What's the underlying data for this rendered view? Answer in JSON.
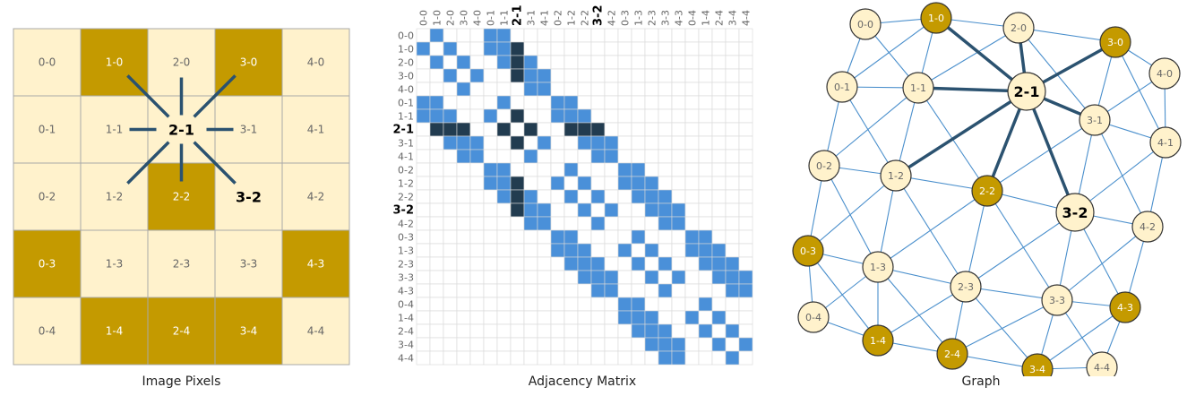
{
  "colors": {
    "light": "#FFF2CC",
    "dark": "#C49A00",
    "grid_border": "#a9a9a9",
    "matrix_blue": "#4A90D9",
    "matrix_dark": "#223C50",
    "matrix_grid": "#d8d8d8",
    "edge_light": "#4A8FCC",
    "edge_dark": "#2B5270",
    "text_dim": "#666666",
    "text_bold": "#000000"
  },
  "captions": {
    "pixels": "Image Pixels",
    "matrix": "Adjacency Matrix",
    "graph": "Graph"
  },
  "highlight": {
    "center": "2-1",
    "secondary": "3-2"
  },
  "pixels": {
    "cells": [
      {
        "label": "0-0",
        "dark": false
      },
      {
        "label": "1-0",
        "dark": true
      },
      {
        "label": "2-0",
        "dark": false
      },
      {
        "label": "3-0",
        "dark": true
      },
      {
        "label": "4-0",
        "dark": false
      },
      {
        "label": "0-1",
        "dark": false
      },
      {
        "label": "1-1",
        "dark": false
      },
      {
        "label": "2-1",
        "dark": false
      },
      {
        "label": "3-1",
        "dark": false
      },
      {
        "label": "4-1",
        "dark": false
      },
      {
        "label": "0-2",
        "dark": false
      },
      {
        "label": "1-2",
        "dark": false
      },
      {
        "label": "2-2",
        "dark": true
      },
      {
        "label": "3-2",
        "dark": false
      },
      {
        "label": "4-2",
        "dark": false
      },
      {
        "label": "0-3",
        "dark": true
      },
      {
        "label": "1-3",
        "dark": false
      },
      {
        "label": "2-3",
        "dark": false
      },
      {
        "label": "3-3",
        "dark": false
      },
      {
        "label": "4-3",
        "dark": true
      },
      {
        "label": "0-4",
        "dark": false
      },
      {
        "label": "1-4",
        "dark": true
      },
      {
        "label": "2-4",
        "dark": true
      },
      {
        "label": "3-4",
        "dark": true
      },
      {
        "label": "4-4",
        "dark": false
      }
    ]
  },
  "matrix": {
    "labels": [
      "0-0",
      "1-0",
      "2-0",
      "3-0",
      "4-0",
      "0-1",
      "1-1",
      "2-1",
      "3-1",
      "4-1",
      "0-2",
      "1-2",
      "2-2",
      "3-2",
      "4-2",
      "0-3",
      "1-3",
      "2-3",
      "3-3",
      "4-3",
      "0-4",
      "1-4",
      "2-4",
      "3-4",
      "4-4"
    ]
  },
  "graph": {
    "nodes": [
      {
        "label": "0-0",
        "dark": false
      },
      {
        "label": "1-0",
        "dark": true
      },
      {
        "label": "2-0",
        "dark": false
      },
      {
        "label": "3-0",
        "dark": true
      },
      {
        "label": "4-0",
        "dark": false
      },
      {
        "label": "0-1",
        "dark": false
      },
      {
        "label": "1-1",
        "dark": false
      },
      {
        "label": "2-1",
        "dark": false
      },
      {
        "label": "3-1",
        "dark": false
      },
      {
        "label": "4-1",
        "dark": false
      },
      {
        "label": "0-2",
        "dark": false
      },
      {
        "label": "1-2",
        "dark": false
      },
      {
        "label": "2-2",
        "dark": true
      },
      {
        "label": "3-2",
        "dark": false
      },
      {
        "label": "4-2",
        "dark": false
      },
      {
        "label": "0-3",
        "dark": true
      },
      {
        "label": "1-3",
        "dark": false
      },
      {
        "label": "2-3",
        "dark": false
      },
      {
        "label": "3-3",
        "dark": false
      },
      {
        "label": "4-3",
        "dark": true
      },
      {
        "label": "0-4",
        "dark": false
      },
      {
        "label": "1-4",
        "dark": true
      },
      {
        "label": "2-4",
        "dark": true
      },
      {
        "label": "3-4",
        "dark": true
      },
      {
        "label": "4-4",
        "dark": false
      }
    ]
  }
}
